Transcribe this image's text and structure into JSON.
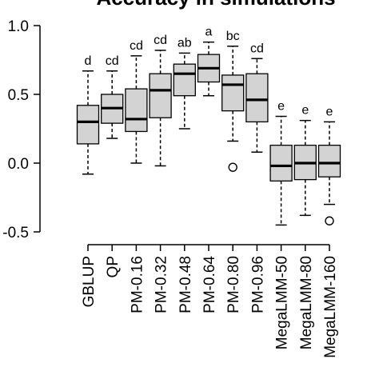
{
  "chart_data": {
    "type": "boxplot",
    "title": "Accuracy in simulations",
    "xlabel": "",
    "ylabel": "",
    "ylim": [
      -0.5,
      1.0
    ],
    "yticks": [
      -0.5,
      0.0,
      0.5,
      1.0
    ],
    "ytick_labels": [
      "-0.5",
      "0.0",
      "0.5",
      "1.0"
    ],
    "grid": false,
    "box_fill": "#d3d3d3",
    "categories": [
      "GBLUP",
      "QP",
      "PM-0.16",
      "PM-0.32",
      "PM-0.48",
      "PM-0.64",
      "PM-0.80",
      "PM-0.96",
      "MegaLMM-50",
      "MegaLMM-80",
      "MegaLMM-160"
    ],
    "boxes": [
      {
        "min": -0.08,
        "q1": 0.14,
        "median": 0.3,
        "q3": 0.42,
        "max": 0.67,
        "outliers": [],
        "letter": "d"
      },
      {
        "min": 0.18,
        "q1": 0.29,
        "median": 0.4,
        "q3": 0.5,
        "max": 0.67,
        "outliers": [],
        "letter": "cd"
      },
      {
        "min": 0.0,
        "q1": 0.23,
        "median": 0.32,
        "q3": 0.54,
        "max": 0.78,
        "outliers": [],
        "letter": "cd"
      },
      {
        "min": -0.02,
        "q1": 0.33,
        "median": 0.53,
        "q3": 0.65,
        "max": 0.82,
        "outliers": [],
        "letter": "cd"
      },
      {
        "min": 0.25,
        "q1": 0.49,
        "median": 0.65,
        "q3": 0.72,
        "max": 0.8,
        "outliers": [],
        "letter": "ab"
      },
      {
        "min": 0.49,
        "q1": 0.59,
        "median": 0.69,
        "q3": 0.79,
        "max": 0.88,
        "outliers": [],
        "letter": "a"
      },
      {
        "min": 0.16,
        "q1": 0.38,
        "median": 0.57,
        "q3": 0.64,
        "max": 0.85,
        "outliers": [
          -0.03
        ],
        "letter": "bc"
      },
      {
        "min": 0.08,
        "q1": 0.3,
        "median": 0.46,
        "q3": 0.65,
        "max": 0.76,
        "outliers": [],
        "letter": "cd"
      },
      {
        "min": -0.45,
        "q1": -0.13,
        "median": -0.02,
        "q3": 0.13,
        "max": 0.34,
        "outliers": [],
        "letter": "e"
      },
      {
        "min": -0.38,
        "q1": -0.12,
        "median": 0.0,
        "q3": 0.13,
        "max": 0.31,
        "outliers": [],
        "letter": "e"
      },
      {
        "min": -0.3,
        "q1": -0.1,
        "median": 0.0,
        "q3": 0.13,
        "max": 0.3,
        "outliers": [
          -0.42
        ],
        "letter": "e"
      }
    ]
  }
}
